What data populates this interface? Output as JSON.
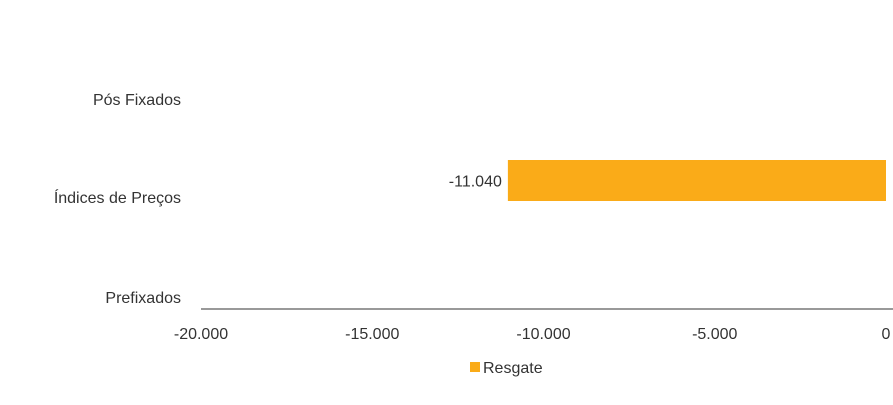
{
  "chart_data": {
    "type": "bar",
    "orientation": "horizontal",
    "categories": [
      "Pós Fixados",
      "Índices de Preços",
      "Prefixados"
    ],
    "series": [
      {
        "name": "Resgate",
        "color": "#FAAB18",
        "values": [
          null,
          -11040,
          null
        ],
        "data_labels": [
          "",
          "-11.040",
          ""
        ]
      }
    ],
    "xlim": [
      -20000,
      0
    ],
    "x_ticks": [
      -20000,
      -15000,
      -10000,
      -5000,
      0
    ],
    "x_tick_labels": [
      "-20.000",
      "-15.000",
      "-10.000",
      "-5.000",
      "0"
    ],
    "grid": false,
    "legend": "bottom-center"
  }
}
